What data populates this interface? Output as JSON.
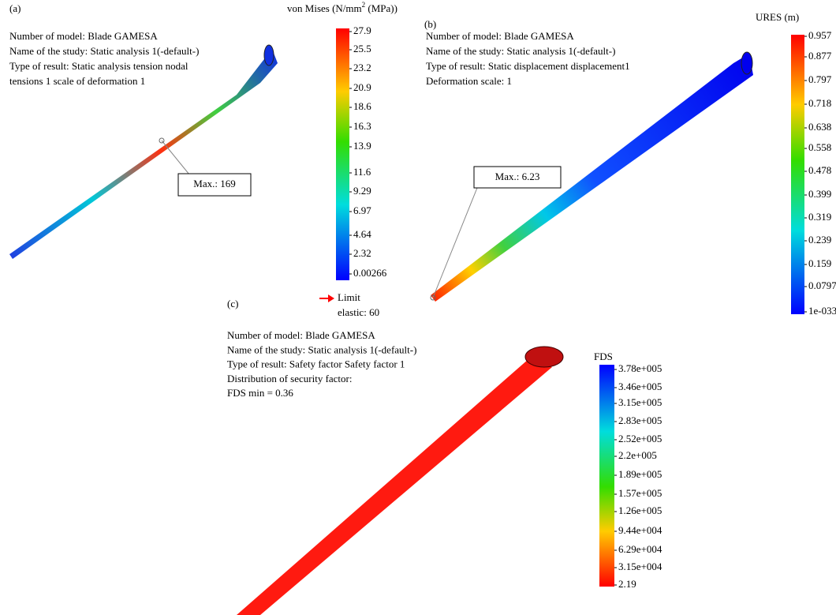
{
  "panels": [
    {
      "label": "(a)",
      "info": [
        "Number of model: Blade GAMESA",
        "Name of the study: Static analysis 1(-default-)",
        "Type of result: Static analysis tension nodal",
        "tensions 1 scale of deformation 1"
      ],
      "legend": {
        "title": {
          "main": "von Mises (N/mm",
          "sup": "2",
          "rest": " (MPa))"
        },
        "ticks": [
          "27.9",
          "25.5",
          "23.2",
          "20.9",
          "18.6",
          "16.3",
          "13.9",
          "11.6",
          "9.29",
          "6.97",
          "4.64",
          "2.32",
          "0.00266"
        ],
        "limit": [
          "Limit",
          "elastic: 60"
        ]
      },
      "max_label": "Max.: 169"
    },
    {
      "label": "(b)",
      "info": [
        "Number of model: Blade GAMESA",
        "Name of the study: Static analysis 1(-default-)",
        "Type of result: Static displacement displacement1",
        "Deformation scale: 1"
      ],
      "legend": {
        "title": "URES (m)",
        "ticks": [
          "0.957",
          "0.877",
          "0.797",
          "0.718",
          "0.638",
          "0.558",
          "0.478",
          "0.399",
          "0.319",
          "0.239",
          "0.159",
          "0.0797",
          "1e-033"
        ]
      },
      "max_label": "Max.: 6.23"
    },
    {
      "label": "(c)",
      "info": [
        "Number of model: Blade GAMESA",
        "Name of the study: Static analysis 1(-default-)",
        "Type of result: Safety factor Safety factor 1",
        "Distribution of security factor:",
        "FDS min = 0.36"
      ],
      "legend": {
        "title": "FDS",
        "ticks": [
          "3.78e+005",
          "3.46e+005",
          "3.15e+005",
          "2.83e+005",
          "2.52e+005",
          "2.2e+005",
          "1.89e+005",
          "1.57e+005",
          "1.26e+005",
          "9.44e+004",
          "6.29e+004",
          "3.15e+004",
          "2.19"
        ]
      }
    }
  ]
}
